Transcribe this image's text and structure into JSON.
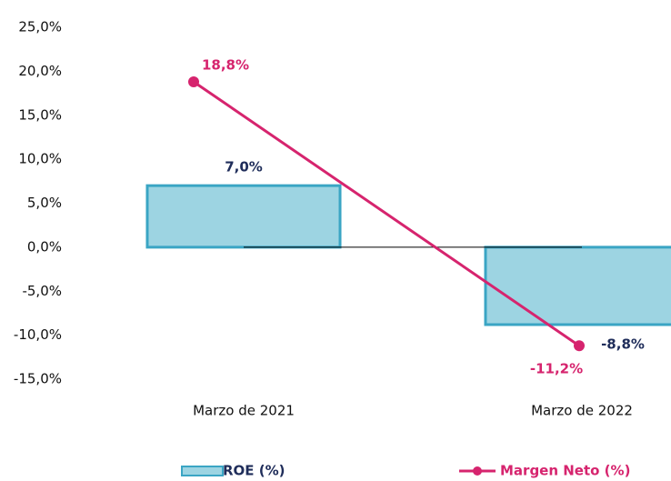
{
  "chart_data": {
    "type": "bar",
    "categories": [
      "Marzo de 2021",
      "Marzo de 2022"
    ],
    "series": [
      {
        "name": "ROE (%)",
        "type": "bar",
        "color": "#9dd4e2",
        "values": [
          7.0,
          -8.8
        ],
        "value_labels": [
          "7,0%",
          "-8,8%"
        ]
      },
      {
        "name": "Margen Neto (%)",
        "type": "line",
        "color": "#d6246e",
        "values": [
          18.8,
          -11.2
        ],
        "value_labels": [
          "18,8%",
          "-11,2%"
        ]
      }
    ],
    "ylim": [
      -15,
      25
    ],
    "yticks": [
      {
        "value": -15,
        "label": "-15,0%"
      },
      {
        "value": -10,
        "label": "-10,0%"
      },
      {
        "value": -5,
        "label": "-5,0%"
      },
      {
        "value": 0,
        "label": "0,0%"
      },
      {
        "value": 5,
        "label": "5,0%"
      },
      {
        "value": 10,
        "label": "10,0%"
      },
      {
        "value": 15,
        "label": "15,0%"
      },
      {
        "value": 20,
        "label": "20,0%"
      },
      {
        "value": 25,
        "label": "25,0%"
      }
    ],
    "grid": false,
    "legend": "bottom"
  }
}
